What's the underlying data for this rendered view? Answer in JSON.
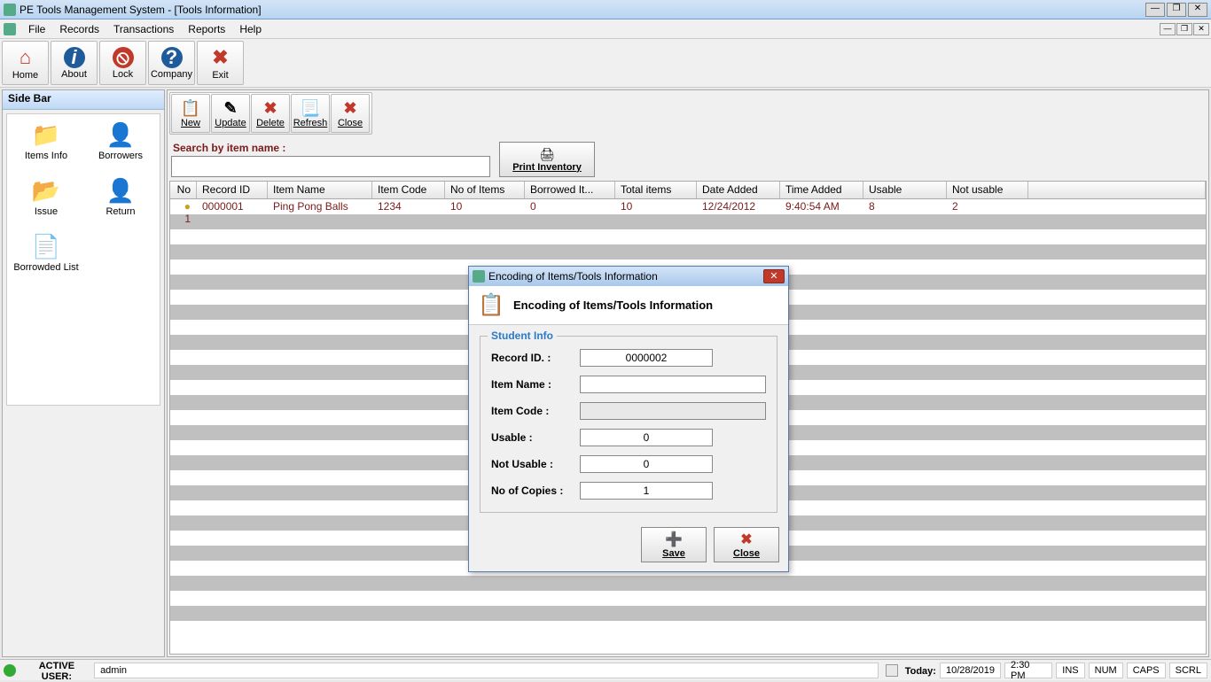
{
  "window": {
    "title": "PE Tools Management System - [Tools Information]"
  },
  "menubar": {
    "items": [
      "File",
      "Records",
      "Transactions",
      "Reports",
      "Help"
    ]
  },
  "toolbar": [
    {
      "label": "Home",
      "color": "#c0392b",
      "glyph": "⌂"
    },
    {
      "label": "About",
      "color": "#1f5a9a",
      "glyph": "i"
    },
    {
      "label": "Lock",
      "color": "#c0392b",
      "glyph": "⦸"
    },
    {
      "label": "Company",
      "color": "#1f5a9a",
      "glyph": "?"
    },
    {
      "label": "Exit",
      "color": "#c0392b",
      "glyph": "✖"
    }
  ],
  "sidebar": {
    "title": "Side Bar",
    "items": [
      {
        "label": "Items Info",
        "glyph": "📁"
      },
      {
        "label": "Borrowers",
        "glyph": "👤"
      },
      {
        "label": "Issue",
        "glyph": "📂"
      },
      {
        "label": "Return",
        "glyph": "👤"
      },
      {
        "label": "Borrowded List",
        "glyph": "📄"
      }
    ]
  },
  "subtoolbar": [
    {
      "label": "New",
      "color": "#2e8b2e",
      "glyph": "📋"
    },
    {
      "label": "Update",
      "color": "#caa11e",
      "glyph": "✎"
    },
    {
      "label": "Delete",
      "color": "#c0392b",
      "glyph": "✖"
    },
    {
      "label": "Refresh",
      "color": "#777",
      "glyph": "📃"
    },
    {
      "label": "Close",
      "color": "#c0392b",
      "glyph": "✖"
    }
  ],
  "search": {
    "label": "Search by item name :",
    "value": "",
    "print_label": "Print Inventory"
  },
  "table": {
    "columns": [
      "No",
      "Record ID",
      "Item Name",
      "Item Code",
      "No of Items",
      "Borrowed It...",
      "Total items",
      "Date Added",
      "Time Added",
      "Usable",
      "Not usable"
    ],
    "rows": [
      {
        "no": "1",
        "record_id": "0000001",
        "item_name": "Ping Pong Balls",
        "item_code": "1234",
        "no_of_items": "10",
        "borrowed": "0",
        "total": "10",
        "date": "12/24/2012",
        "time": "9:40:54 AM",
        "usable": "8",
        "not_usable": "2"
      }
    ],
    "stripe_count": 28
  },
  "dialog": {
    "title": "Encoding of Items/Tools Information",
    "header": "Encoding of Items/Tools Information",
    "group_label": "Student Info",
    "fields": {
      "record_id": {
        "label": "Record ID. :",
        "value": "0000002"
      },
      "item_name": {
        "label": "Item Name :",
        "value": ""
      },
      "item_code": {
        "label": "Item Code :",
        "value": ""
      },
      "usable": {
        "label": "Usable :",
        "value": "0"
      },
      "not_usable": {
        "label": "Not Usable :",
        "value": "0"
      },
      "copies": {
        "label": "No of Copies :",
        "value": "1"
      }
    },
    "buttons": {
      "save": "Save",
      "close": "Close"
    }
  },
  "statusbar": {
    "user_label": "ACTIVE USER:",
    "user_value": "admin",
    "today_label": "Today:",
    "date": "10/28/2019",
    "time": "2:30 PM",
    "indicators": [
      "INS",
      "NUM",
      "CAPS",
      "SCRL"
    ]
  }
}
